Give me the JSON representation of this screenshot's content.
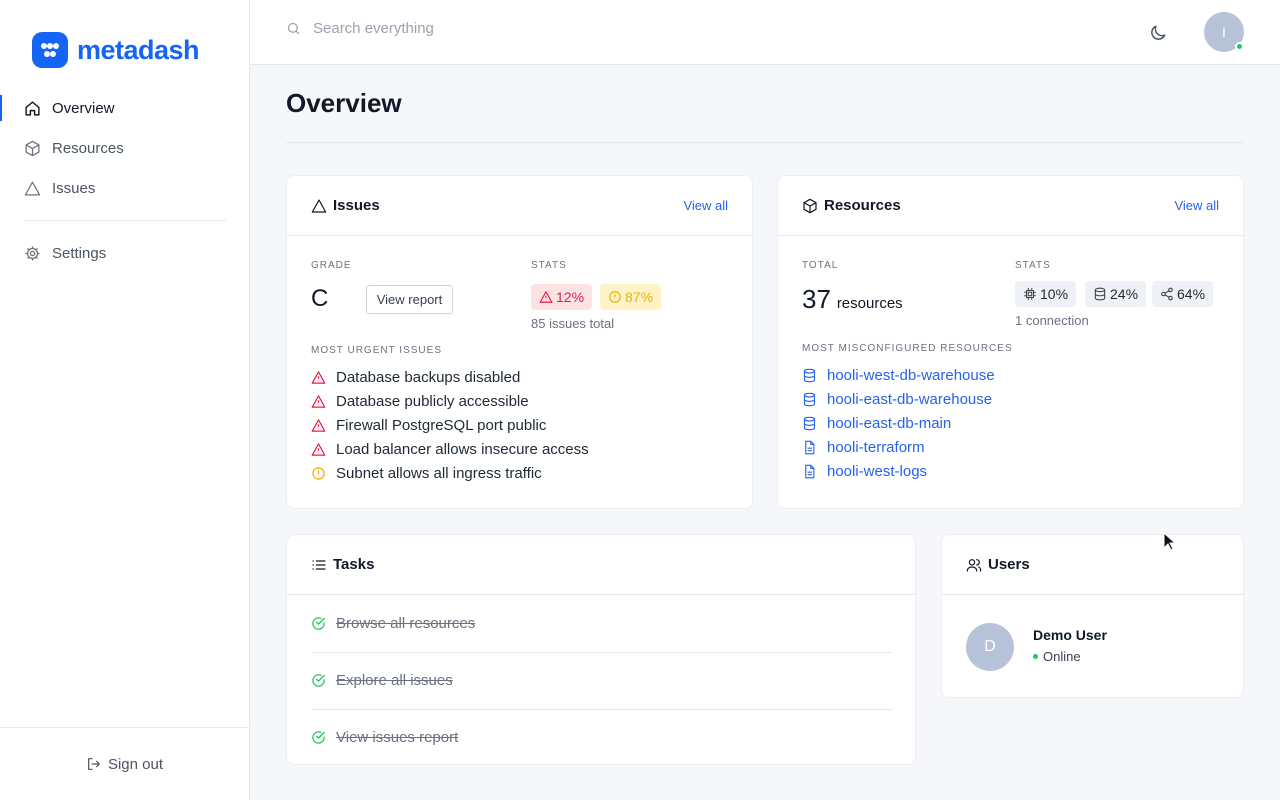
{
  "brand": {
    "name": "metadash",
    "color": "#1465f5"
  },
  "sidebar": {
    "items": [
      {
        "label": "Overview",
        "icon": "home-icon",
        "active": true
      },
      {
        "label": "Resources",
        "icon": "cube-icon"
      },
      {
        "label": "Issues",
        "icon": "triangle-icon"
      },
      {
        "label": "Settings",
        "icon": "gear-icon"
      }
    ],
    "sign_out": "Sign out"
  },
  "topbar": {
    "search_placeholder": "Search everything",
    "avatar_initial": "I",
    "theme_icon": "moon-icon"
  },
  "page": {
    "title": "Overview"
  },
  "issues_card": {
    "title": "Issues",
    "view_all": "View all",
    "grade_label": "GRADE",
    "grade": "C",
    "report_button": "View report",
    "stats_label": "STATS",
    "critical_pct": "12%",
    "warning_pct": "87%",
    "total": "85 issues total",
    "urgent_label": "MOST URGENT ISSUES",
    "urgent": [
      {
        "text": "Database backups disabled",
        "severity": "critical"
      },
      {
        "text": "Database publicly accessible",
        "severity": "critical"
      },
      {
        "text": "Firewall PostgreSQL port public",
        "severity": "critical"
      },
      {
        "text": "Load balancer allows insecure access",
        "severity": "critical"
      },
      {
        "text": "Subnet allows all ingress traffic",
        "severity": "warning"
      }
    ]
  },
  "resources_card": {
    "title": "Resources",
    "view_all": "View all",
    "total_label": "TOTAL",
    "total": "37",
    "total_unit": "resources",
    "stats_label": "STATS",
    "stats": [
      {
        "icon": "cpu-icon",
        "value": "10%"
      },
      {
        "icon": "database-icon",
        "value": "24%"
      },
      {
        "icon": "share-icon",
        "value": "64%"
      }
    ],
    "connections": "1 connection",
    "misconfigured_label": "MOST MISCONFIGURED RESOURCES",
    "misconfigured": [
      {
        "name": "hooli-west-db-warehouse",
        "icon": "database-icon"
      },
      {
        "name": "hooli-east-db-warehouse",
        "icon": "database-icon"
      },
      {
        "name": "hooli-east-db-main",
        "icon": "database-icon"
      },
      {
        "name": "hooli-terraform",
        "icon": "file-icon"
      },
      {
        "name": "hooli-west-logs",
        "icon": "file-icon"
      }
    ]
  },
  "tasks_card": {
    "title": "Tasks",
    "tasks": [
      {
        "label": "Browse all resources",
        "done": true
      },
      {
        "label": "Explore all issues",
        "done": true
      },
      {
        "label": "View issues report",
        "done": true
      }
    ]
  },
  "users_card": {
    "title": "Users",
    "user": {
      "initial": "D",
      "name": "Demo User",
      "status": "Online"
    }
  },
  "colors": {
    "critical": "#e11d48",
    "warning": "#eab308",
    "success": "#22c55e",
    "link": "#2563eb"
  }
}
